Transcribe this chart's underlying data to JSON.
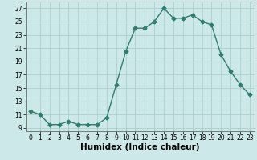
{
  "x": [
    0,
    1,
    2,
    3,
    4,
    5,
    6,
    7,
    8,
    9,
    10,
    11,
    12,
    13,
    14,
    15,
    16,
    17,
    18,
    19,
    20,
    21,
    22,
    23
  ],
  "y": [
    11.5,
    11,
    9.5,
    9.5,
    10,
    9.5,
    9.5,
    9.5,
    10.5,
    15.5,
    20.5,
    24,
    24,
    25,
    27,
    25.5,
    25.5,
    26,
    25,
    24.5,
    20,
    17.5,
    15.5,
    14
  ],
  "line_color": "#2e7d6e",
  "marker": "D",
  "markersize": 2.5,
  "linewidth": 1.0,
  "xlabel": "Humidex (Indice chaleur)",
  "background_color": "#cce8e8",
  "grid_color": "#aacfcf",
  "xlim": [
    -0.5,
    23.5
  ],
  "ylim": [
    8.5,
    28
  ],
  "yticks": [
    9,
    11,
    13,
    15,
    17,
    19,
    21,
    23,
    25,
    27
  ],
  "xticks": [
    0,
    1,
    2,
    3,
    4,
    5,
    6,
    7,
    8,
    9,
    10,
    11,
    12,
    13,
    14,
    15,
    16,
    17,
    18,
    19,
    20,
    21,
    22,
    23
  ],
  "tick_fontsize": 5.5,
  "xlabel_fontsize": 7.5
}
